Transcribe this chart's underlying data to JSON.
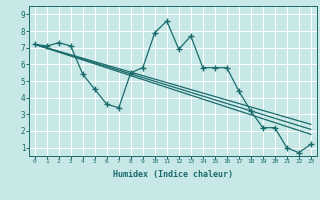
{
  "xlabel": "Humidex (Indice chaleur)",
  "xlim": [
    -0.5,
    23.5
  ],
  "ylim": [
    0.5,
    9.5
  ],
  "xticks": [
    0,
    1,
    2,
    3,
    4,
    5,
    6,
    7,
    8,
    9,
    10,
    11,
    12,
    13,
    14,
    15,
    16,
    17,
    18,
    19,
    20,
    21,
    22,
    23
  ],
  "yticks": [
    1,
    2,
    3,
    4,
    5,
    6,
    7,
    8,
    9
  ],
  "bg_color": "#c8e8e8",
  "line_color": "#1a6b6b",
  "grid_color": "#ffffff",
  "jagged_x": [
    0,
    1,
    2,
    3,
    4,
    5,
    6,
    7,
    8,
    9,
    10,
    11,
    12,
    13,
    14,
    15,
    16,
    17,
    18,
    19,
    20,
    21,
    22,
    23
  ],
  "jagged_y": [
    7.2,
    7.1,
    7.3,
    7.1,
    5.4,
    4.5,
    3.6,
    3.4,
    5.5,
    5.8,
    7.9,
    8.6,
    6.9,
    7.7,
    5.8,
    5.8,
    5.8,
    4.4,
    3.2,
    2.2,
    2.2,
    1.0,
    0.7,
    1.2
  ],
  "trend1_x": [
    0,
    23
  ],
  "trend1_y": [
    7.2,
    2.4
  ],
  "trend2_x": [
    0,
    23
  ],
  "trend2_y": [
    7.2,
    2.1
  ],
  "trend3_x": [
    0,
    23
  ],
  "trend3_y": [
    7.2,
    1.8
  ]
}
